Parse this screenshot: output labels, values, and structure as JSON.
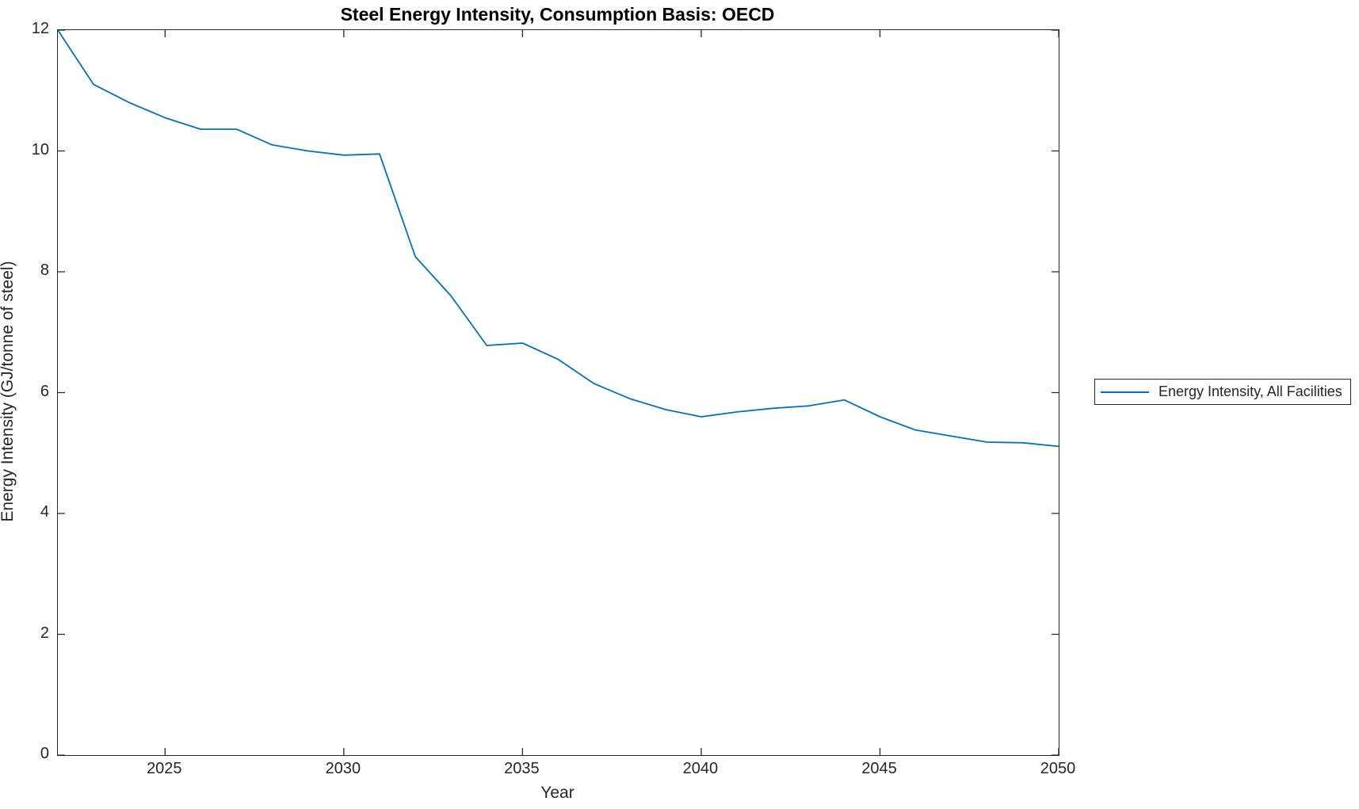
{
  "figure": {
    "background": "#ffffff",
    "axes_color": "#262626",
    "accent_color": "#0072BD"
  },
  "chart_data": {
    "type": "line",
    "title": "Steel Energy Intensity, Consumption Basis: OECD",
    "xlabel": "Year",
    "ylabel": "Energy Intensity (GJ/tonne of steel)",
    "xlim": [
      2022,
      2050
    ],
    "ylim": [
      0,
      12
    ],
    "x_ticks": [
      2025,
      2030,
      2035,
      2040,
      2045,
      2050
    ],
    "y_ticks": [
      0,
      2,
      4,
      6,
      8,
      10,
      12
    ],
    "grid": false,
    "legend_position": "outside-right-center",
    "legend_border": true,
    "series": [
      {
        "name": "Energy Intensity, All Facilities",
        "color": "#0072BD",
        "x": [
          2022,
          2023,
          2024,
          2025,
          2026,
          2027,
          2028,
          2029,
          2030,
          2031,
          2032,
          2033,
          2034,
          2035,
          2036,
          2037,
          2038,
          2039,
          2040,
          2041,
          2042,
          2043,
          2044,
          2045,
          2046,
          2047,
          2048,
          2049,
          2050
        ],
        "y": [
          12.0,
          11.1,
          10.8,
          10.55,
          10.36,
          10.36,
          10.1,
          10.0,
          9.93,
          9.95,
          8.25,
          7.6,
          6.78,
          6.82,
          6.55,
          6.15,
          5.9,
          5.72,
          5.6,
          5.68,
          5.74,
          5.78,
          5.88,
          5.6,
          5.38,
          5.28,
          5.18,
          5.17,
          5.11
        ]
      }
    ]
  }
}
